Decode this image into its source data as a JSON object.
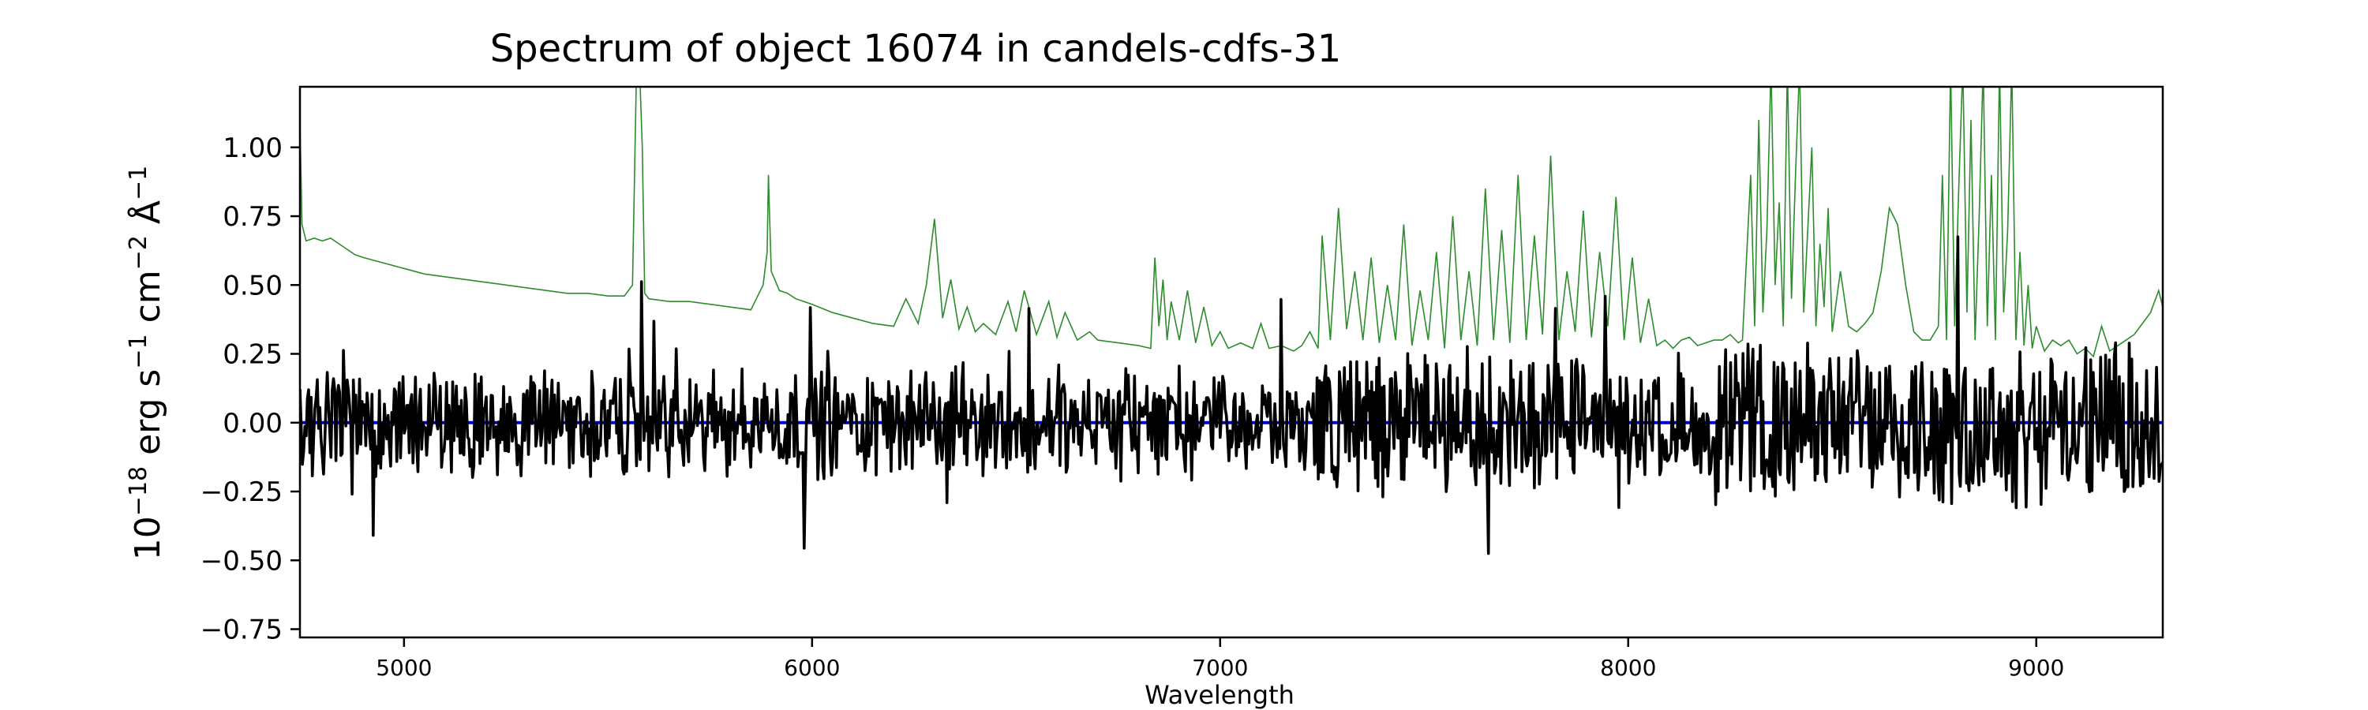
{
  "chart_data": {
    "type": "line",
    "title": "Spectrum of object 16074 in candels-cdfs-31",
    "xlabel": "Wavelength",
    "ylabel_base": "10",
    "ylabel_exp": "−18",
    "ylabel_rest": " erg s",
    "ylabel_s_exp": "−1",
    "ylabel_cm": " cm",
    "ylabel_cm_exp": "−2",
    "ylabel_ang": " Å",
    "ylabel_ang_exp": "−1",
    "xlim": [
      4745,
      9310
    ],
    "ylim": [
      -0.78,
      1.22
    ],
    "x_ticks": [
      5000,
      6000,
      7000,
      8000,
      9000
    ],
    "x_tick_labels": [
      "5000",
      "6000",
      "7000",
      "8000",
      "9000"
    ],
    "y_ticks": [
      1.0,
      0.75,
      0.5,
      0.25,
      0.0,
      -0.25,
      -0.5,
      -0.75
    ],
    "y_tick_labels": [
      "1.00",
      "0.75",
      "0.50",
      "0.25",
      "0.00",
      "−0.25",
      "−0.50",
      "−0.75"
    ],
    "grid": false,
    "series": [
      {
        "role": "error",
        "color": "#2e8b2e",
        "x": [
          4745,
          4750,
          4760,
          4780,
          4800,
          4820,
          4850,
          4880,
          4900,
          4950,
          5000,
          5050,
          5100,
          5150,
          5200,
          5250,
          5300,
          5350,
          5400,
          5450,
          5500,
          5540,
          5560,
          5570,
          5577,
          5584,
          5590,
          5600,
          5650,
          5700,
          5750,
          5800,
          5850,
          5880,
          5890,
          5893,
          5896,
          5900,
          5920,
          5940,
          5960,
          6000,
          6050,
          6100,
          6150,
          6200,
          6230,
          6260,
          6280,
          6300,
          6320,
          6340,
          6360,
          6380,
          6400,
          6420,
          6450,
          6480,
          6500,
          6520,
          6550,
          6580,
          6600,
          6620,
          6650,
          6680,
          6700,
          6750,
          6800,
          6830,
          6840,
          6850,
          6860,
          6870,
          6880,
          6900,
          6920,
          6940,
          6960,
          6980,
          7000,
          7020,
          7050,
          7080,
          7100,
          7120,
          7150,
          7180,
          7200,
          7220,
          7240,
          7250,
          7270,
          7290,
          7310,
          7330,
          7350,
          7370,
          7390,
          7410,
          7430,
          7450,
          7470,
          7490,
          7510,
          7530,
          7550,
          7570,
          7590,
          7610,
          7630,
          7650,
          7670,
          7690,
          7710,
          7730,
          7750,
          7770,
          7790,
          7810,
          7830,
          7850,
          7870,
          7890,
          7910,
          7930,
          7950,
          7970,
          7990,
          8010,
          8030,
          8050,
          8070,
          8090,
          8110,
          8130,
          8150,
          8170,
          8190,
          8210,
          8230,
          8250,
          8270,
          8280,
          8290,
          8300,
          8310,
          8320,
          8330,
          8340,
          8350,
          8360,
          8370,
          8380,
          8390,
          8400,
          8410,
          8420,
          8430,
          8440,
          8450,
          8460,
          8470,
          8480,
          8490,
          8500,
          8520,
          8540,
          8560,
          8580,
          8600,
          8620,
          8640,
          8660,
          8680,
          8700,
          8720,
          8740,
          8760,
          8770,
          8780,
          8790,
          8800,
          8810,
          8820,
          8830,
          8840,
          8850,
          8860,
          8870,
          8880,
          8890,
          8900,
          8910,
          8920,
          8930,
          8940,
          8950,
          8960,
          8970,
          8980,
          8990,
          9000,
          9020,
          9040,
          9060,
          9080,
          9100,
          9120,
          9140,
          9160,
          9180,
          9200,
          9220,
          9240,
          9260,
          9280,
          9300,
          9310
        ],
        "y": [
          1.1,
          0.72,
          0.66,
          0.67,
          0.66,
          0.67,
          0.64,
          0.61,
          0.6,
          0.58,
          0.56,
          0.54,
          0.53,
          0.52,
          0.51,
          0.5,
          0.49,
          0.48,
          0.47,
          0.47,
          0.46,
          0.46,
          0.5,
          1.3,
          1.3,
          1.0,
          0.47,
          0.45,
          0.44,
          0.44,
          0.43,
          0.42,
          0.41,
          0.5,
          0.62,
          0.9,
          0.75,
          0.55,
          0.48,
          0.47,
          0.45,
          0.43,
          0.4,
          0.38,
          0.36,
          0.35,
          0.45,
          0.36,
          0.5,
          0.74,
          0.38,
          0.52,
          0.34,
          0.42,
          0.33,
          0.36,
          0.32,
          0.44,
          0.33,
          0.48,
          0.32,
          0.44,
          0.31,
          0.4,
          0.3,
          0.33,
          0.3,
          0.29,
          0.28,
          0.27,
          0.6,
          0.35,
          0.52,
          0.3,
          0.44,
          0.3,
          0.48,
          0.29,
          0.42,
          0.28,
          0.33,
          0.27,
          0.29,
          0.27,
          0.36,
          0.27,
          0.28,
          0.26,
          0.28,
          0.33,
          0.27,
          0.68,
          0.3,
          0.78,
          0.34,
          0.55,
          0.3,
          0.6,
          0.29,
          0.5,
          0.3,
          0.72,
          0.28,
          0.48,
          0.3,
          0.62,
          0.27,
          0.75,
          0.3,
          0.55,
          0.28,
          0.85,
          0.3,
          0.7,
          0.29,
          0.9,
          0.3,
          0.68,
          0.32,
          0.97,
          0.3,
          0.55,
          0.33,
          0.77,
          0.31,
          0.62,
          0.35,
          0.82,
          0.3,
          0.6,
          0.29,
          0.45,
          0.28,
          0.3,
          0.27,
          0.3,
          0.31,
          0.28,
          0.29,
          0.3,
          0.3,
          0.32,
          0.29,
          0.3,
          0.6,
          0.9,
          0.35,
          1.1,
          0.4,
          0.7,
          1.3,
          0.5,
          0.8,
          0.35,
          1.3,
          0.45,
          0.9,
          1.3,
          0.4,
          0.7,
          1.0,
          0.35,
          0.65,
          0.42,
          0.78,
          0.33,
          0.55,
          0.35,
          0.33,
          0.36,
          0.4,
          0.55,
          0.78,
          0.72,
          0.5,
          0.33,
          0.3,
          0.3,
          0.35,
          0.9,
          0.3,
          1.3,
          0.35,
          0.85,
          1.3,
          0.4,
          1.1,
          0.3,
          0.75,
          1.3,
          0.35,
          0.9,
          0.3,
          1.3,
          0.4,
          0.7,
          1.3,
          0.3,
          0.62,
          0.28,
          0.5,
          0.27,
          0.35,
          0.26,
          0.3,
          0.28,
          0.3,
          0.25,
          0.27,
          0.24,
          0.35,
          0.26,
          0.28,
          0.3,
          0.32,
          0.36,
          0.4,
          0.48,
          0.42
        ]
      },
      {
        "role": "model",
        "color": "#0000cc",
        "x": [
          4745,
          9310
        ],
        "y": [
          0.0,
          0.0
        ]
      }
    ]
  }
}
